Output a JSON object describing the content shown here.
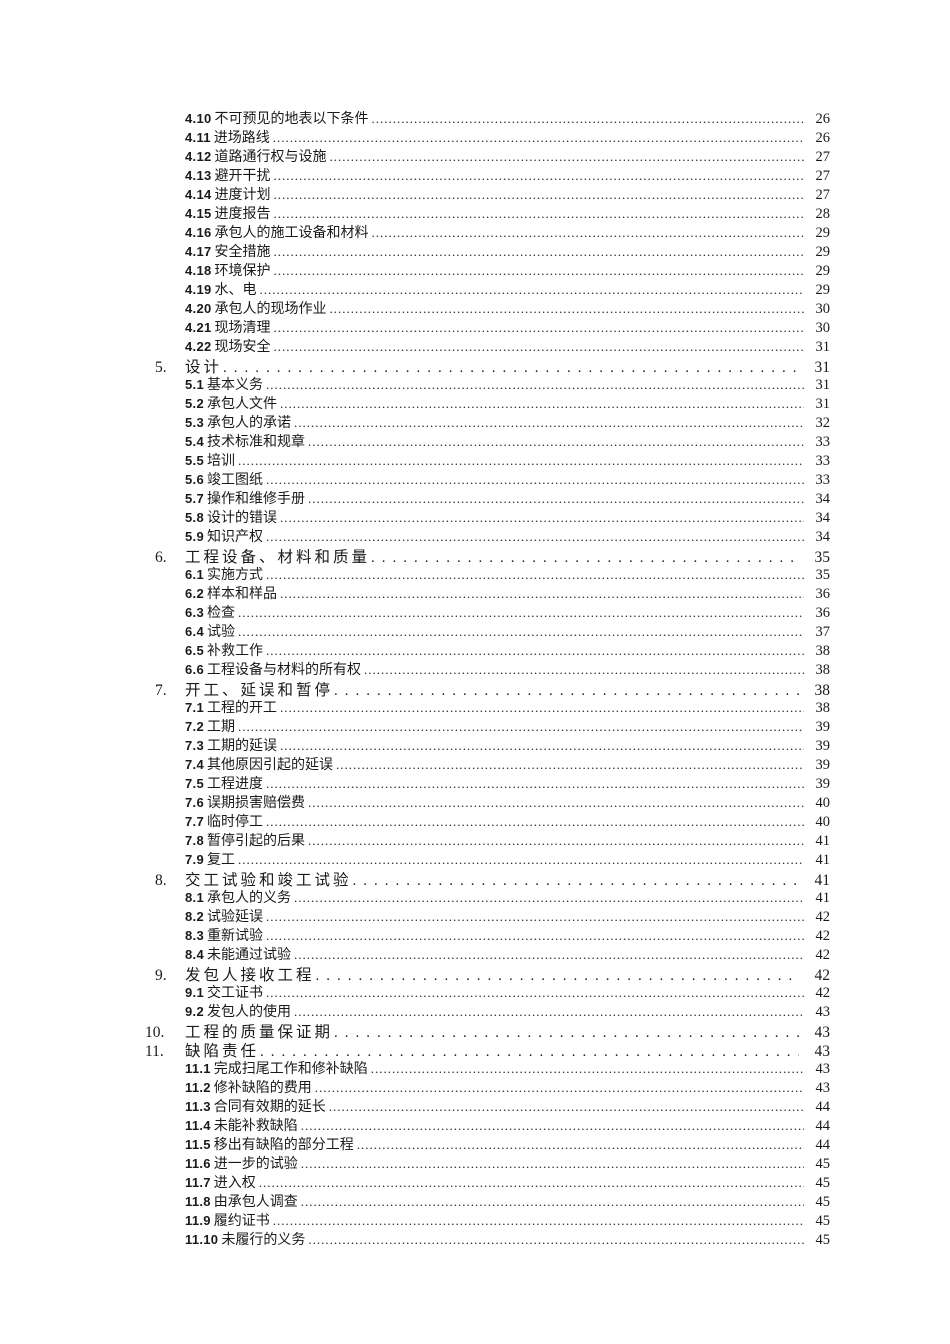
{
  "page": {
    "background": "#ffffff",
    "text_color": "#1a1a1a"
  },
  "toc": {
    "entries": [
      {
        "level": 2,
        "number": "4.10",
        "title": "不可预见的地表以下条件",
        "page": "26"
      },
      {
        "level": 2,
        "number": "4.11",
        "title": "进场路线",
        "page": "26"
      },
      {
        "level": 2,
        "number": "4.12",
        "title": "道路通行权与设施",
        "page": "27"
      },
      {
        "level": 2,
        "number": "4.13",
        "title": "避开干扰",
        "page": "27"
      },
      {
        "level": 2,
        "number": "4.14",
        "title": "进度计划",
        "page": "27"
      },
      {
        "level": 2,
        "number": "4.15",
        "title": "进度报告",
        "page": "28"
      },
      {
        "level": 2,
        "number": "4.16",
        "title": "承包人的施工设备和材料",
        "page": "29"
      },
      {
        "level": 2,
        "number": "4.17",
        "title": "安全措施",
        "page": "29"
      },
      {
        "level": 2,
        "number": "4.18",
        "title": "环境保护",
        "page": "29"
      },
      {
        "level": 2,
        "number": "4.19",
        "title": "水、电",
        "page": "29"
      },
      {
        "level": 2,
        "number": "4.20",
        "title": "承包人的现场作业",
        "page": "30"
      },
      {
        "level": 2,
        "number": "4.21",
        "title": "现场清理",
        "page": "30"
      },
      {
        "level": 2,
        "number": "4.22",
        "title": "现场安全",
        "page": "31"
      },
      {
        "level": 1,
        "number": "5.",
        "title": "设计",
        "page": "31"
      },
      {
        "level": 2,
        "number": "5.1",
        "title": "基本义务",
        "page": "31"
      },
      {
        "level": 2,
        "number": "5.2",
        "title": "承包人文件",
        "page": "31"
      },
      {
        "level": 2,
        "number": "5.3",
        "title": "承包人的承诺",
        "page": "32"
      },
      {
        "level": 2,
        "number": "5.4",
        "title": "技术标准和规章",
        "page": "33"
      },
      {
        "level": 2,
        "number": "5.5",
        "title": "培训",
        "page": "33"
      },
      {
        "level": 2,
        "number": "5.6",
        "title": "竣工图纸",
        "page": "33"
      },
      {
        "level": 2,
        "number": "5.7",
        "title": "操作和维修手册",
        "page": "34"
      },
      {
        "level": 2,
        "number": "5.8",
        "title": "设计的错误",
        "page": "34"
      },
      {
        "level": 2,
        "number": "5.9",
        "title": "知识产权",
        "page": "34"
      },
      {
        "level": 1,
        "number": "6.",
        "title": "工程设备、材料和质量",
        "page": "35"
      },
      {
        "level": 2,
        "number": "6.1",
        "title": "实施方式",
        "page": "35"
      },
      {
        "level": 2,
        "number": "6.2",
        "title": "样本和样品",
        "page": "36"
      },
      {
        "level": 2,
        "number": "6.3",
        "title": "检查",
        "page": "36"
      },
      {
        "level": 2,
        "number": "6.4",
        "title": "试验",
        "page": "37"
      },
      {
        "level": 2,
        "number": "6.5",
        "title": "补救工作",
        "page": "38"
      },
      {
        "level": 2,
        "number": "6.6",
        "title": "工程设备与材料的所有权",
        "page": "38"
      },
      {
        "level": 1,
        "number": "7.",
        "title": "开工、延误和暂停",
        "page": "38"
      },
      {
        "level": 2,
        "number": "7.1",
        "title": "工程的开工",
        "page": "38"
      },
      {
        "level": 2,
        "number": "7.2",
        "title": "工期",
        "page": "39"
      },
      {
        "level": 2,
        "number": "7.3",
        "title": "工期的延误",
        "page": "39"
      },
      {
        "level": 2,
        "number": "7.4",
        "title": "其他原因引起的延误",
        "page": "39"
      },
      {
        "level": 2,
        "number": "7.5",
        "title": "工程进度",
        "page": "39"
      },
      {
        "level": 2,
        "number": "7.6",
        "title": "误期损害赔偿费",
        "page": "40"
      },
      {
        "level": 2,
        "number": "7.7",
        "title": "临时停工",
        "page": "40"
      },
      {
        "level": 2,
        "number": "7.8",
        "title": "暂停引起的后果",
        "page": "41"
      },
      {
        "level": 2,
        "number": "7.9",
        "title": "复工",
        "page": "41"
      },
      {
        "level": 1,
        "number": "8.",
        "title": "交工试验和竣工试验",
        "page": "41"
      },
      {
        "level": 2,
        "number": "8.1",
        "title": "承包人的义务",
        "page": "41"
      },
      {
        "level": 2,
        "number": "8.2",
        "title": "试验延误",
        "page": "42"
      },
      {
        "level": 2,
        "number": "8.3",
        "title": "重新试验",
        "page": "42"
      },
      {
        "level": 2,
        "number": "8.4",
        "title": "未能通过试验",
        "page": "42"
      },
      {
        "level": 1,
        "number": "9.",
        "title": "发包人接收工程",
        "page": "42"
      },
      {
        "level": 2,
        "number": "9.1",
        "title": "交工证书",
        "page": "42"
      },
      {
        "level": 2,
        "number": "9.2",
        "title": "发包人的使用",
        "page": "43"
      },
      {
        "level": 1,
        "number": "10.",
        "title": "工程的质量保证期",
        "page": "43"
      },
      {
        "level": 1,
        "number": "11.",
        "title": "缺陷责任",
        "page": "43"
      },
      {
        "level": 2,
        "number": "11.1",
        "title": "完成扫尾工作和修补缺陷",
        "page": "43"
      },
      {
        "level": 2,
        "number": "11.2",
        "title": "修补缺陷的费用",
        "page": "43"
      },
      {
        "level": 2,
        "number": "11.3",
        "title": "合同有效期的延长",
        "page": "44"
      },
      {
        "level": 2,
        "number": "11.4",
        "title": "未能补救缺陷",
        "page": "44"
      },
      {
        "level": 2,
        "number": "11.5",
        "title": "移出有缺陷的部分工程",
        "page": "44"
      },
      {
        "level": 2,
        "number": "11.6",
        "title": "进一步的试验",
        "page": "45"
      },
      {
        "level": 2,
        "number": "11.7",
        "title": "进入权",
        "page": "45"
      },
      {
        "level": 2,
        "number": "11.8",
        "title": "由承包人调查",
        "page": "45"
      },
      {
        "level": 2,
        "number": "11.9",
        "title": "履约证书",
        "page": "45"
      },
      {
        "level": 2,
        "number": "11.10",
        "title": "未履行的义务",
        "page": "45"
      }
    ]
  }
}
